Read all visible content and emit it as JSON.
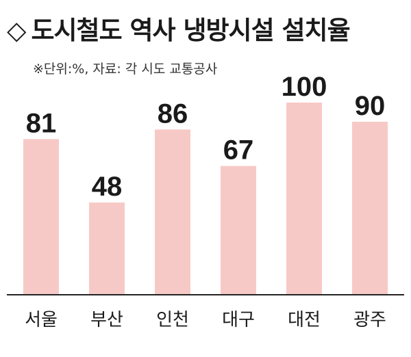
{
  "title": {
    "symbol": "◇",
    "text": "도시철도 역사 냉방시설 설치율"
  },
  "subtitle": "※단위:%, 자료: 각 시도 교통공사",
  "colors": {
    "bar": "#f7c9c6",
    "baseline": "#222222"
  },
  "chart_data": {
    "type": "bar",
    "title": "도시철도 역사 냉방시설 설치율",
    "subtitle": "※단위:%, 자료: 각 시도 교통공사",
    "categories": [
      "서울",
      "부산",
      "인천",
      "대구",
      "대전",
      "광주"
    ],
    "values": [
      81,
      48,
      86,
      67,
      100,
      90
    ],
    "ylim": [
      0,
      100
    ],
    "grid": false,
    "legend": "none"
  }
}
